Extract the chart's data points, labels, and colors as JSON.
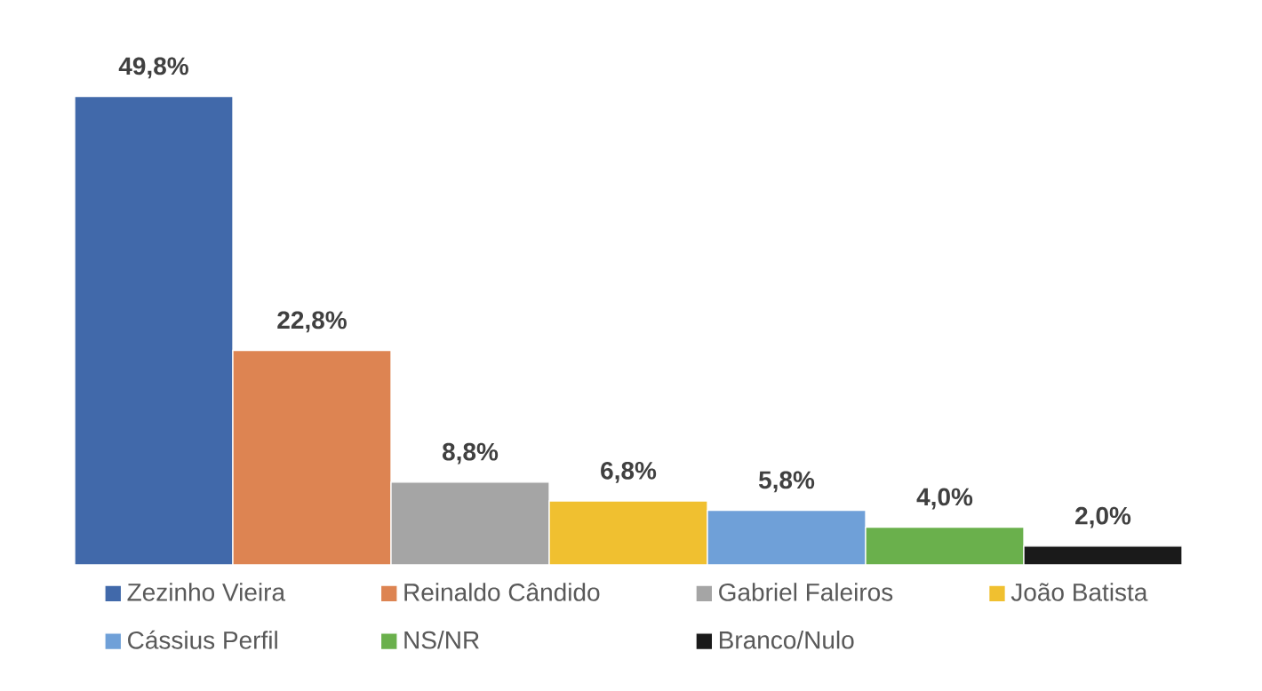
{
  "chart_data": {
    "type": "bar",
    "categories": [
      null
    ],
    "legend": "bottom",
    "series": [
      {
        "name": "Zezinho Vieira",
        "color": "#4169aa",
        "values": [
          49.8
        ],
        "value_labels": [
          "49,8%"
        ]
      },
      {
        "name": "Reinaldo Cândido",
        "color": "#dd8452",
        "values": [
          22.8
        ],
        "value_labels": [
          "22,8%"
        ]
      },
      {
        "name": "Gabriel Faleiros",
        "color": "#a5a5a5",
        "values": [
          8.8
        ],
        "value_labels": [
          "8,8%"
        ]
      },
      {
        "name": "João Batista",
        "color": "#f0c030",
        "values": [
          6.8
        ],
        "value_labels": [
          "6,8%"
        ]
      },
      {
        "name": "Cássius Perfil",
        "color": "#6fa0d8",
        "values": [
          5.8
        ],
        "value_labels": [
          "5,8%"
        ]
      },
      {
        "name": "NS/NR",
        "color": "#6ab04c",
        "values": [
          4.0
        ],
        "value_labels": [
          "4,0%"
        ]
      },
      {
        "name": "Branco/Nulo",
        "color": "#1a1a1a",
        "values": [
          2.0
        ],
        "value_labels": [
          "2,0%"
        ]
      }
    ]
  }
}
